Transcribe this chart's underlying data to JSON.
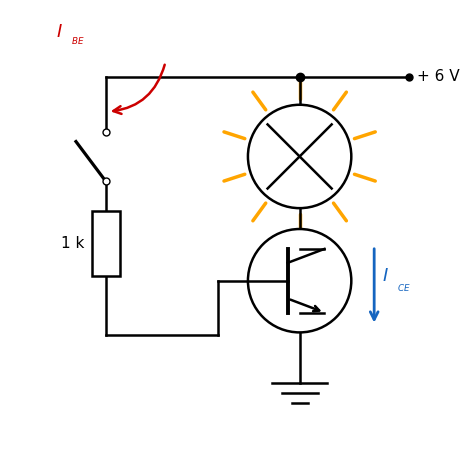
{
  "bg_color": "#ffffff",
  "wire_color": "#000000",
  "orange_color": "#FFA500",
  "red_color": "#cc0000",
  "blue_color": "#1565c0",
  "lw": 1.8,
  "voltage_label": "+ 6 V",
  "resistor_label": "1 k"
}
